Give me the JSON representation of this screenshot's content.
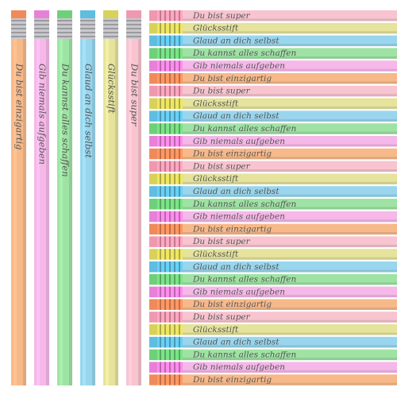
{
  "vertical_pencils": [
    "Du bist einzigartig",
    "Gib niemals aufgeben",
    "Du kannst alles schaffen",
    "Glaud an dich selbst",
    "Glücksstift",
    "Du bist super"
  ],
  "horizontal_pencils": [
    "Du bist super",
    "Glücksstift",
    "Glaud an dich selbst",
    "Du kannst alles schaffen",
    "Gib niemals aufgeben",
    "Du bist einzigartig",
    "Du bist super",
    "Glücksstift",
    "Glaud an dich selbst",
    "Du kannst alles schaffen",
    "Gib niemals aufgeben",
    "Du bist einzigartig",
    "Du bist super",
    "Glücksstift",
    "Glaud an dich selbst",
    "Du kannst alles schaffen",
    "Gib niemals aufgeben",
    "Du bist einzigartig",
    "Du bist super",
    "Glücksstift",
    "Glaud an dich selbst",
    "Du kannst alles schaffen",
    "Gib niemals aufgeben",
    "Du bist einzigartig",
    "Du bist super",
    "Glücksstift",
    "Glaud an dich selbst",
    "Du kannst alles schaffen",
    "Gib niemals aufgeben",
    "Du bist einzigartig"
  ]
}
